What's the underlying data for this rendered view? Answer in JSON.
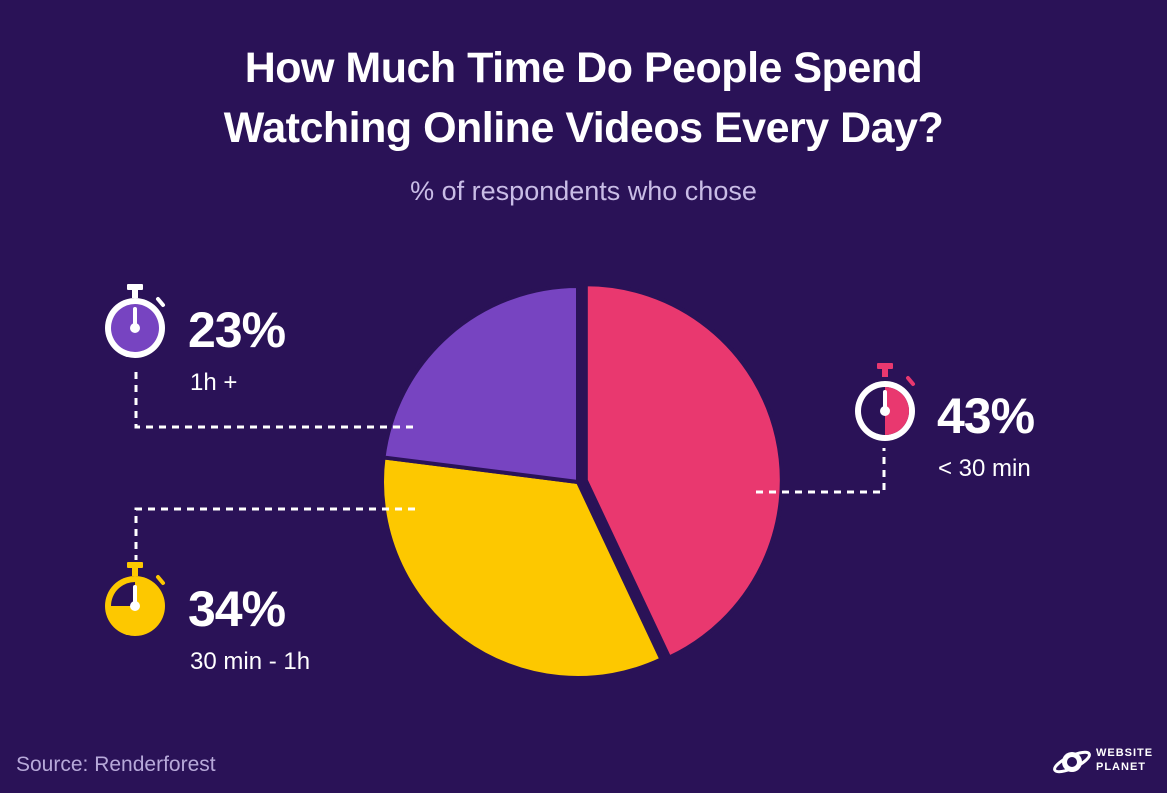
{
  "title_line1": "How Much Time Do People Spend",
  "title_line2": "Watching Online Videos Every Day?",
  "subtitle": "% of respondents who chose",
  "source": "Source: Renderforest",
  "logo": {
    "line1": "WEBSITE",
    "line2": "PLANET"
  },
  "colors": {
    "background": "#2a1257",
    "pink": "#e9386f",
    "yellow": "#fdc800",
    "purple": "#7744c1"
  },
  "chart_data": {
    "type": "pie",
    "title": "How Much Time Do People Spend Watching Online Videos Every Day?",
    "subtitle": "% of respondents who chose",
    "unit": "%",
    "slices": [
      {
        "label": "< 30 min",
        "value": 43,
        "display": "43%",
        "color": "#e9386f",
        "icon": "stopwatch-icon"
      },
      {
        "label": "30 min - 1h",
        "value": 34,
        "display": "34%",
        "color": "#fdc800",
        "icon": "stopwatch-icon"
      },
      {
        "label": "1h +",
        "value": 23,
        "display": "23%",
        "color": "#7744c1",
        "icon": "stopwatch-icon"
      }
    ],
    "start_angle": "12 o'clock, clockwise",
    "exploded": "< 30 min"
  }
}
